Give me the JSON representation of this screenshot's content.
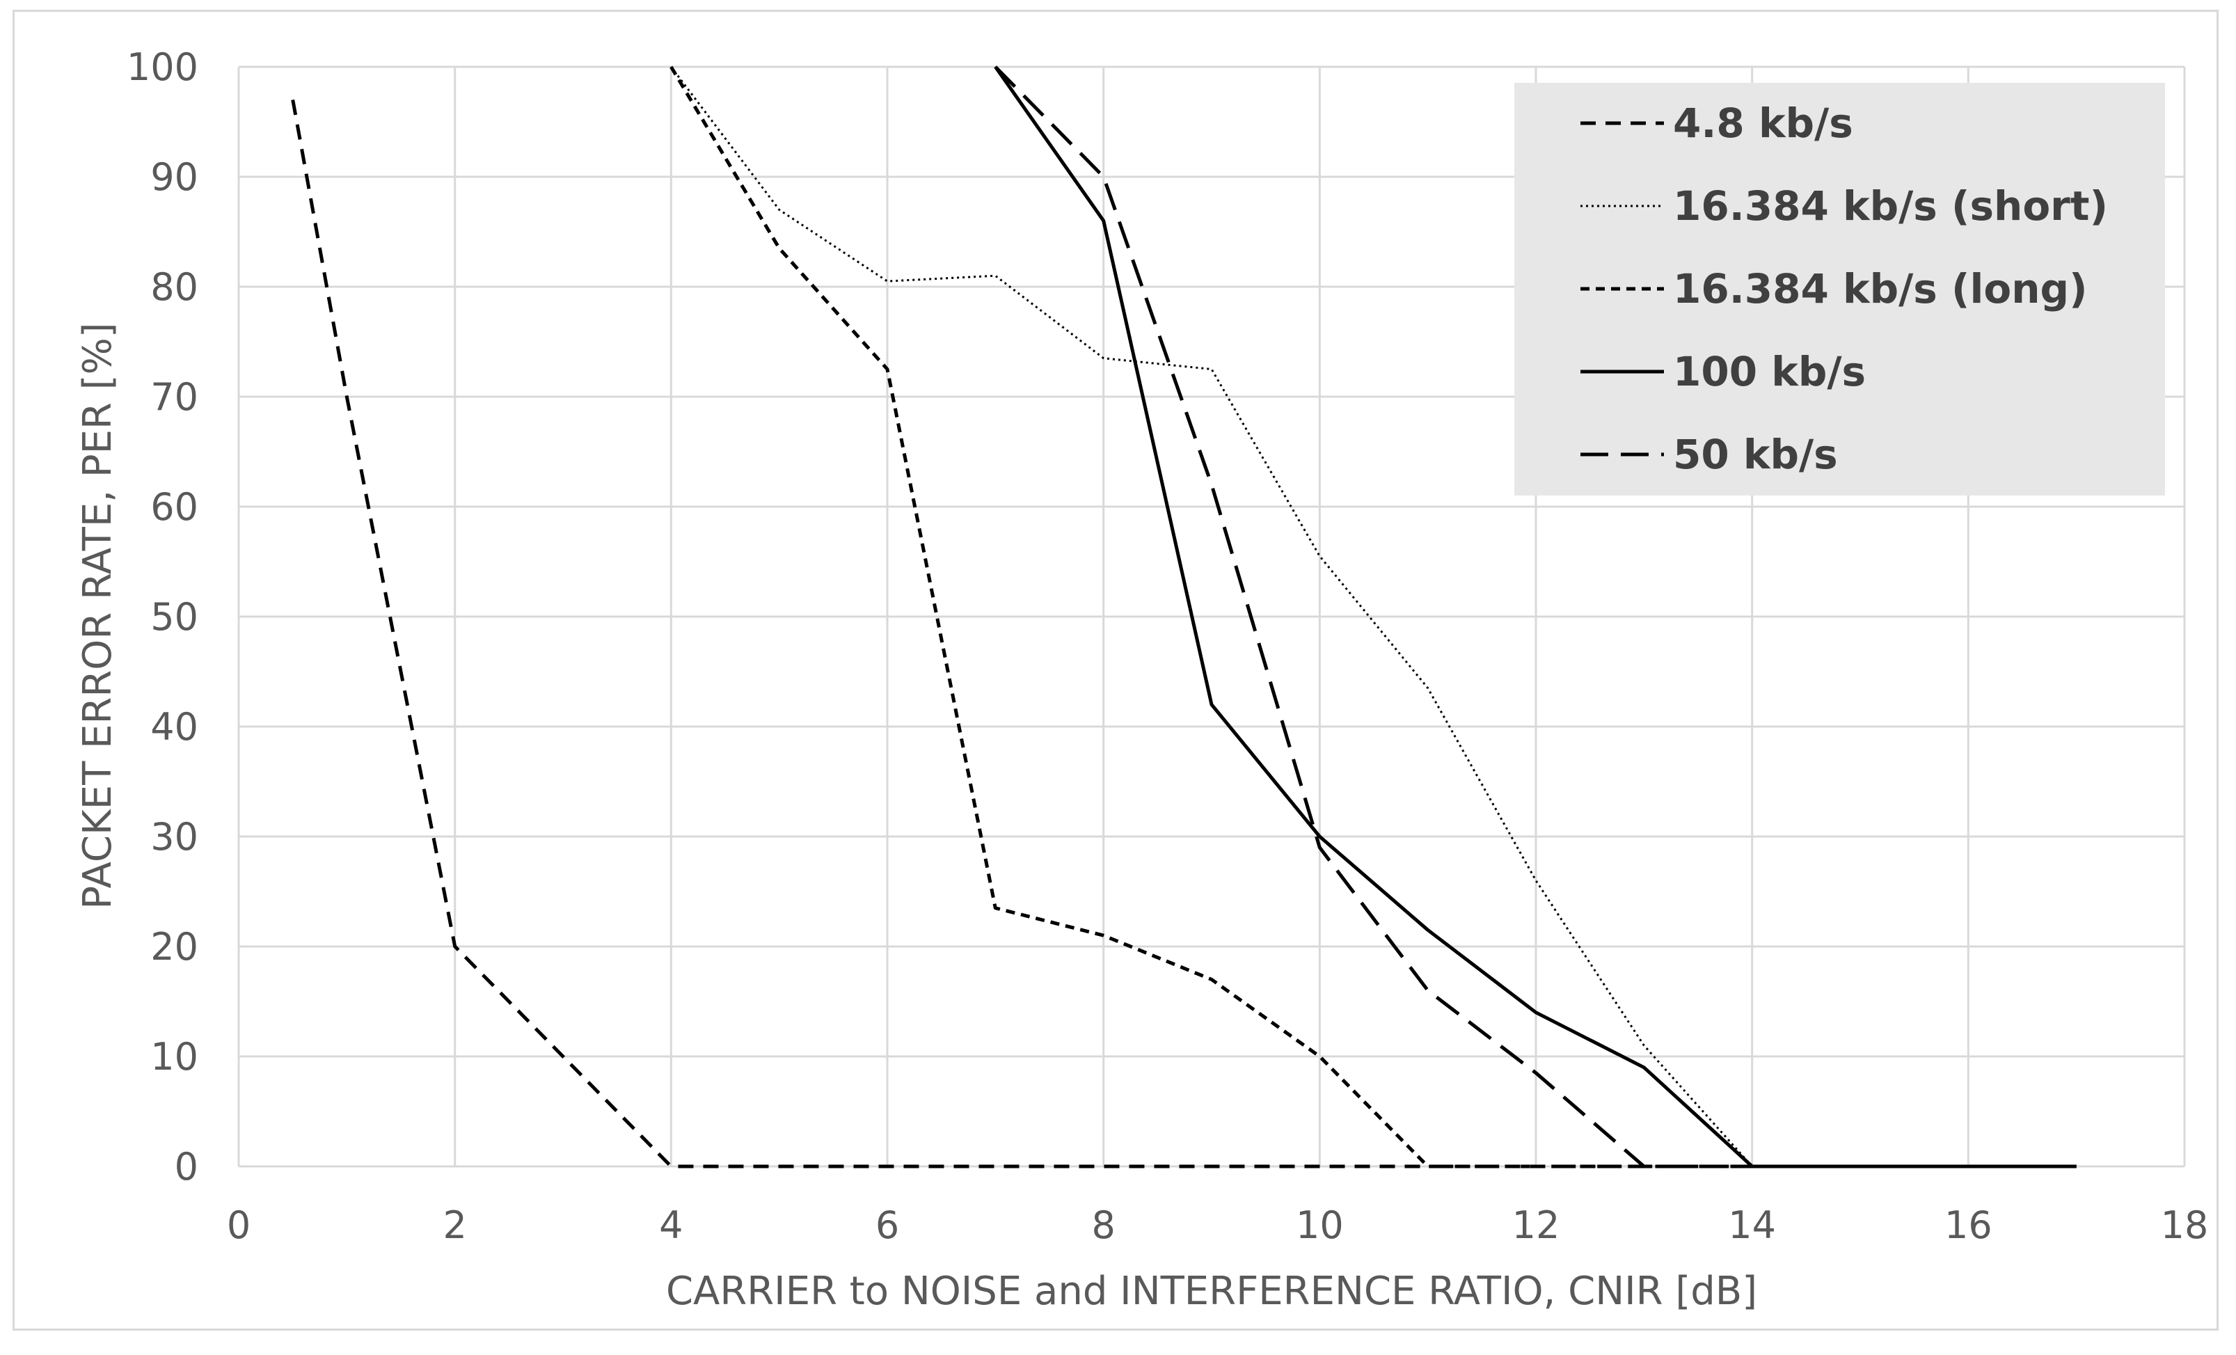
{
  "chart_data": {
    "type": "line",
    "title": "",
    "xlabel": "CARRIER to  NOISE and INTERFERENCE RATIO, CNIR [dB]",
    "ylabel": "PACKET ERROR RATE, PER [%]",
    "xlim": [
      0,
      18
    ],
    "ylim": [
      0,
      100
    ],
    "xticks": [
      0,
      2,
      4,
      6,
      8,
      10,
      12,
      14,
      16,
      18
    ],
    "yticks": [
      0,
      10,
      20,
      30,
      40,
      50,
      60,
      70,
      80,
      90,
      100
    ],
    "grid": true,
    "legend_position": "top-right",
    "series": [
      {
        "name": "4.8 kb/s",
        "style": "dashed",
        "color": "#000000",
        "points": [
          [
            0.5,
            97
          ],
          [
            1,
            70
          ],
          [
            1.5,
            45
          ],
          [
            2,
            20
          ],
          [
            3,
            10
          ],
          [
            4,
            0
          ],
          [
            17,
            0
          ]
        ]
      },
      {
        "name": "16.384 kb/s (short)",
        "style": "dotted",
        "color": "#000000",
        "points": [
          [
            4,
            100
          ],
          [
            5,
            87
          ],
          [
            6,
            80.5
          ],
          [
            7,
            81
          ],
          [
            8,
            73.5
          ],
          [
            9,
            72.5
          ],
          [
            10,
            55.5
          ],
          [
            11,
            43.5
          ],
          [
            12,
            26
          ],
          [
            13,
            11
          ],
          [
            14,
            0
          ],
          [
            17,
            0
          ]
        ]
      },
      {
        "name": "16.384 kb/s (long)",
        "style": "short-dashed",
        "color": "#000000",
        "points": [
          [
            4,
            100
          ],
          [
            5,
            83.5
          ],
          [
            6,
            72.5
          ],
          [
            7,
            23.5
          ],
          [
            8,
            21
          ],
          [
            9,
            17
          ],
          [
            10,
            10
          ],
          [
            11,
            0
          ],
          [
            17,
            0
          ]
        ]
      },
      {
        "name": "100 kb/s",
        "style": "solid",
        "color": "#000000",
        "points": [
          [
            7,
            100
          ],
          [
            8,
            86
          ],
          [
            9,
            42
          ],
          [
            10,
            30
          ],
          [
            11,
            21.5
          ],
          [
            12,
            14
          ],
          [
            13,
            9
          ],
          [
            14,
            0
          ],
          [
            17,
            0
          ]
        ]
      },
      {
        "name": "50 kb/s",
        "style": "long-dashed",
        "color": "#000000",
        "points": [
          [
            7,
            100
          ],
          [
            8,
            90
          ],
          [
            9,
            62
          ],
          [
            10,
            29
          ],
          [
            11,
            16
          ],
          [
            12,
            8.5
          ],
          [
            13,
            0
          ],
          [
            17,
            0
          ]
        ]
      }
    ],
    "colors": {
      "grid": "#d9d9d9",
      "axis_text": "#595959",
      "legend_background": "#e7e7e7",
      "legend_text": "#404040",
      "frame": "#d9d9d9"
    }
  }
}
